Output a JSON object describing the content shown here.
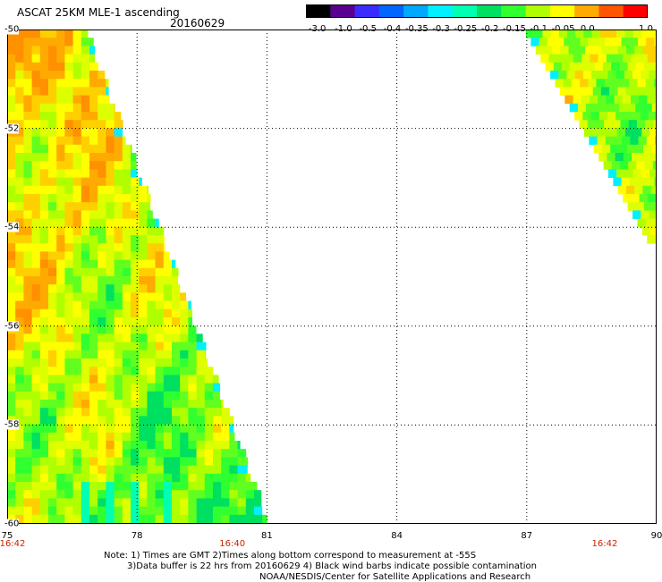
{
  "header": {
    "title": "ASCAT 25KM MLE-1 ascending",
    "date": "20160629"
  },
  "colorbar": {
    "labels": [
      "-3.0",
      "-1.0",
      "-0.5",
      "-0.4",
      "-0.35",
      "-0.3",
      "-0.25",
      "-0.2",
      "-0.15",
      "-0.1",
      "-0.05",
      "0.0",
      "1.0"
    ],
    "colors": [
      "#000000",
      "#5a0090",
      "#3a2cff",
      "#0066ff",
      "#00a8ff",
      "#00f0ff",
      "#00ffb0",
      "#00e060",
      "#30ff30",
      "#b0ff00",
      "#ffff00",
      "#ffaa00",
      "#ff5500",
      "#ff0000"
    ]
  },
  "map": {
    "lat_labels": [
      "-50",
      "-52",
      "-54",
      "-56",
      "-58",
      "-60"
    ],
    "lon_labels": [
      "75",
      "78",
      "81",
      "84",
      "87",
      "90"
    ],
    "lat_range": [
      -60,
      -50
    ],
    "lon_range": [
      75,
      90
    ],
    "time_labels": [
      {
        "text": "16:42",
        "lon": 75
      },
      {
        "text": "16:40",
        "lon": 80.2
      },
      {
        "text": "16:42",
        "lon": 88.8
      }
    ]
  },
  "notes": {
    "line1": "Note: 1) Times are GMT 2)Times along bottom correspond to measurement at -55S",
    "line2": "3)Data buffer is 22 hrs from 20160629 4) Black wind barbs indicate possible contamination",
    "line3": "NOAA/NESDIS/Center for Satellite Applications and Research"
  }
}
